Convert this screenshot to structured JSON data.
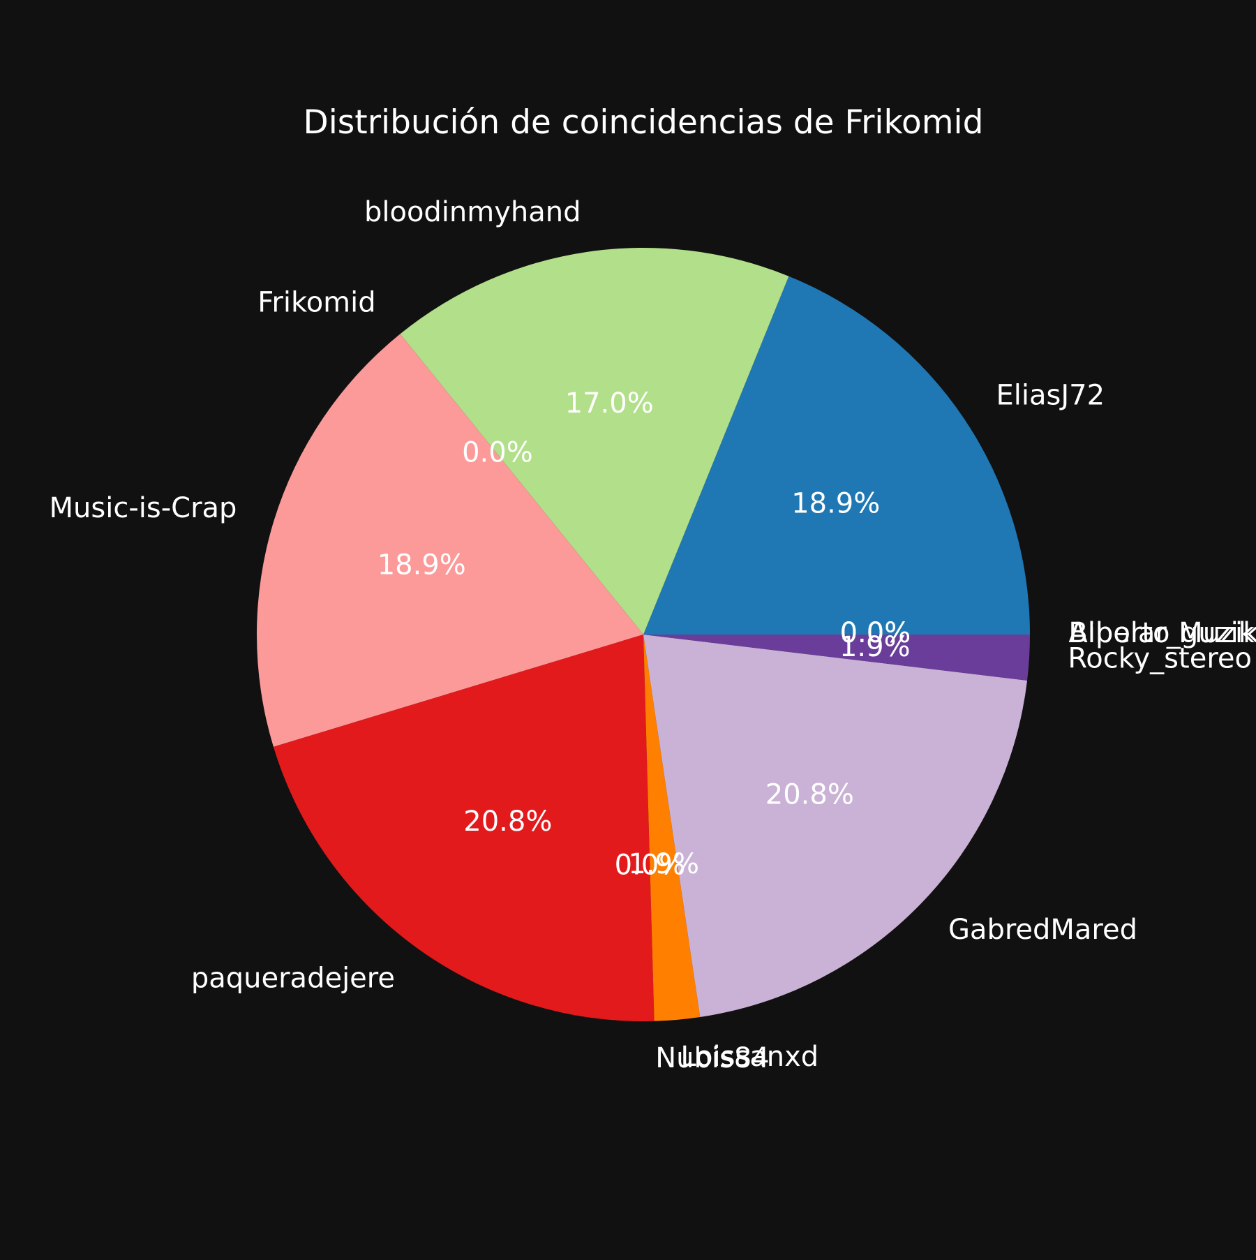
{
  "chart_data": {
    "type": "pie",
    "title": "Distribución de coincidencias de Frikomid",
    "slices": [
      {
        "label": "EliasJ72",
        "value": 18.9,
        "pct_label": "18.9%",
        "color": "#1f78b4"
      },
      {
        "label": "bloodinmyhand",
        "value": 17.0,
        "pct_label": "17.0%",
        "color": "#b2df8a"
      },
      {
        "label": "Frikomid",
        "value": 0.0,
        "pct_label": "0.0%",
        "color": "#33a02c"
      },
      {
        "label": "Music-is-Crap",
        "value": 18.9,
        "pct_label": "18.9%",
        "color": "#fb9a99"
      },
      {
        "label": "paqueradejere",
        "value": 20.8,
        "pct_label": "20.8%",
        "color": "#e31a1c"
      },
      {
        "label": "Nubis84",
        "value": 0.0,
        "pct_label": "0.0%",
        "color": "#fdbf6f"
      },
      {
        "label": "Loissanxd",
        "value": 1.9,
        "pct_label": "1.9%",
        "color": "#ff7f00"
      },
      {
        "label": "GabredMared",
        "value": 20.8,
        "pct_label": "20.8%",
        "color": "#cab2d6"
      },
      {
        "label": "Rocky_stereo",
        "value": 1.9,
        "pct_label": "1.9%",
        "color": "#6a3d9a"
      },
      {
        "label": "Bipolar_guzik",
        "value": 0.0,
        "pct_label": "0.0%",
        "color": "#ffff99"
      },
      {
        "label": "Alberto Muzik",
        "value": 0.0,
        "pct_label": "0.0%",
        "color": "#b15928"
      }
    ],
    "start_angle_deg": 0,
    "direction": "counterclockwise",
    "legend": "none"
  }
}
